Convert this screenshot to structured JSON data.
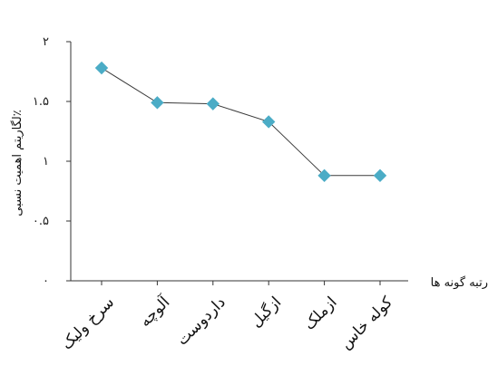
{
  "chart_data": {
    "type": "line",
    "categories": [
      "سرخ ولیک",
      "آلوچه",
      "داردوست",
      "ازگیل",
      "ازملک",
      "کوله خاس"
    ],
    "values": [
      1.78,
      1.49,
      1.48,
      1.33,
      0.88,
      0.88
    ],
    "ylim": [
      0,
      2
    ],
    "yticks": [
      "۰",
      "۰.۵",
      "۱",
      "۱.۵",
      "۲"
    ],
    "ytick_values": [
      0,
      0.5,
      1,
      1.5,
      2
    ],
    "xlabel": "رتبه گونه ها",
    "ylabel": "لگاریتم اهمیت نسبی٪",
    "grid": false,
    "legend": "none",
    "line_color": "#3a3a3a",
    "marker_color": "#4bacc6",
    "axis_color": "#333333"
  }
}
